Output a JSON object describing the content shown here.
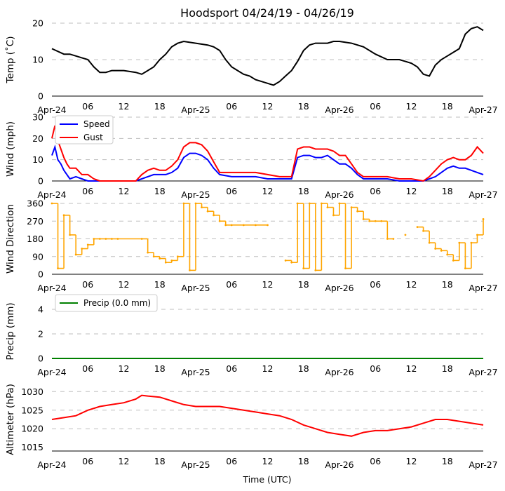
{
  "chart_data": [
    {
      "type": "line",
      "title": "Hoodsport 04/24/19 - 04/26/19",
      "ylabel": "Temp ($^\\circ$C)",
      "ylabel_display": "Temp (˚C)",
      "ylim": [
        0,
        20
      ],
      "yticks": [
        "0",
        "10",
        "20"
      ],
      "x_ticklabels": [
        "Apr-24",
        "06",
        "12",
        "18",
        "Apr-25",
        "06",
        "12",
        "18",
        "Apr-26",
        "06",
        "12",
        "18",
        "Apr-27"
      ],
      "color": "#000000",
      "series": [
        {
          "name": "Temp",
          "x": [
            0,
            2,
            3,
            4,
            5,
            6,
            7,
            8,
            9,
            10,
            12,
            14,
            15,
            16,
            17,
            18,
            19,
            20,
            21,
            22,
            24,
            26,
            27,
            28,
            29,
            30,
            31,
            32,
            33,
            34,
            35,
            36,
            37,
            38,
            39,
            40,
            41,
            42,
            43,
            44,
            45,
            46,
            47,
            48,
            50,
            52,
            54,
            56,
            57,
            58,
            59,
            60,
            61,
            62,
            63,
            64,
            65,
            66,
            67,
            68,
            69,
            70,
            71,
            72
          ],
          "values": [
            13,
            11.5,
            11.5,
            11,
            10.5,
            10,
            8,
            6.5,
            6.5,
            7,
            7,
            6.5,
            6,
            7,
            8,
            10,
            11.5,
            13.5,
            14.5,
            15,
            14.5,
            14,
            13.5,
            12.5,
            10,
            8,
            7,
            6,
            5.5,
            4.5,
            4,
            3.5,
            3,
            4,
            5.5,
            7,
            9.5,
            12.5,
            14,
            14.5,
            14.5,
            14.5,
            15,
            15,
            14.5,
            13.5,
            11.5,
            10,
            10,
            10,
            9.5,
            9,
            8,
            6,
            5.5,
            8.5,
            10,
            11,
            12,
            13,
            17,
            18.5,
            19,
            18
          ]
        }
      ]
    },
    {
      "type": "line",
      "ylabel": "Wind (mph)",
      "ylim": [
        0,
        30
      ],
      "yticks": [
        "0",
        "10",
        "20",
        "30"
      ],
      "x_ticklabels": [
        "Apr-24",
        "06",
        "12",
        "18",
        "Apr-25",
        "06",
        "12",
        "18",
        "Apr-26",
        "06",
        "12",
        "18",
        "Apr-27"
      ],
      "legend": [
        "Speed",
        "Gust"
      ],
      "series": [
        {
          "name": "Speed",
          "color": "#0000ff",
          "x": [
            0,
            0.5,
            1,
            1.5,
            2,
            2.5,
            3,
            4,
            5,
            6,
            7,
            8,
            9,
            10,
            12,
            14,
            15,
            16,
            17,
            18,
            19,
            20,
            21,
            22,
            23,
            24,
            25,
            26,
            27,
            28,
            30,
            32,
            34,
            36,
            38,
            40,
            41,
            42,
            43,
            44,
            45,
            46,
            47,
            48,
            49,
            50,
            51,
            52,
            53,
            54,
            56,
            58,
            60,
            62,
            63,
            64,
            65,
            66,
            67,
            68,
            69,
            70,
            71,
            72
          ],
          "values": [
            12,
            16,
            10,
            8,
            5,
            3,
            1,
            2,
            1,
            0,
            0,
            0,
            0,
            0,
            0,
            0,
            1,
            2,
            3,
            3,
            3,
            4,
            6,
            11,
            13,
            13,
            12,
            10,
            6,
            3,
            2,
            2,
            2,
            1,
            1,
            1,
            11,
            12,
            12,
            11,
            11,
            12,
            10,
            8,
            8,
            6,
            3,
            1,
            1,
            1,
            1,
            0,
            0,
            0,
            1,
            2,
            4,
            6,
            7,
            6,
            6,
            5,
            4,
            3
          ]
        },
        {
          "name": "Gust",
          "color": "#ff0000",
          "x": [
            0,
            0.5,
            1,
            1.5,
            2,
            2.5,
            3,
            4,
            5,
            6,
            7,
            8,
            9,
            10,
            12,
            14,
            15,
            16,
            17,
            18,
            19,
            20,
            21,
            22,
            23,
            24,
            25,
            26,
            27,
            28,
            30,
            32,
            34,
            36,
            38,
            40,
            41,
            42,
            43,
            44,
            45,
            46,
            47,
            48,
            49,
            50,
            51,
            52,
            53,
            54,
            56,
            58,
            60,
            62,
            63,
            64,
            65,
            66,
            67,
            68,
            69,
            70,
            71,
            72
          ],
          "values": [
            20,
            26,
            19,
            15,
            11,
            8,
            6,
            6,
            3,
            3,
            1,
            0,
            0,
            0,
            0,
            0,
            3,
            5,
            6,
            5,
            5,
            7,
            10,
            16,
            18,
            18,
            17,
            14,
            9,
            4,
            4,
            4,
            4,
            3,
            2,
            2,
            15,
            16,
            16,
            15,
            15,
            15,
            14,
            12,
            12,
            8,
            4,
            2,
            2,
            2,
            2,
            1,
            1,
            0,
            2,
            5,
            8,
            10,
            11,
            10,
            10,
            12,
            16,
            13
          ]
        }
      ]
    },
    {
      "type": "scatter",
      "ylabel": "Wind Direction",
      "ylim": [
        0,
        360
      ],
      "yticks": [
        "0",
        "90",
        "180",
        "270",
        "360"
      ],
      "x_ticklabels": [
        "Apr-24",
        "06",
        "12",
        "18",
        "Apr-25",
        "06",
        "12",
        "18",
        "Apr-26",
        "06",
        "12",
        "18",
        "Apr-27"
      ],
      "color": "#ffa500",
      "series": [
        {
          "name": "Direction",
          "x": [
            0,
            1,
            2,
            3,
            4,
            5,
            6,
            7,
            8,
            9,
            10,
            11,
            15,
            16,
            17,
            18,
            19,
            20,
            21,
            22,
            23,
            24,
            25,
            26,
            27,
            28,
            29,
            30,
            32,
            34,
            36,
            38,
            39,
            40,
            41,
            42,
            43,
            44,
            45,
            46,
            47,
            48,
            49,
            50,
            51,
            52,
            53,
            54,
            55,
            56,
            57,
            58,
            59,
            60,
            61,
            62,
            63,
            64,
            65,
            66,
            67,
            68,
            69,
            70,
            71,
            72
          ],
          "values": [
            360,
            30,
            300,
            200,
            100,
            130,
            150,
            180,
            180,
            180,
            180,
            180,
            180,
            110,
            90,
            80,
            60,
            70,
            90,
            360,
            20,
            360,
            340,
            320,
            300,
            270,
            250,
            250,
            250,
            250,
            250,
            null,
            70,
            60,
            360,
            30,
            360,
            20,
            360,
            340,
            300,
            360,
            30,
            340,
            320,
            280,
            270,
            270,
            270,
            180,
            180,
            null,
            200,
            null,
            240,
            220,
            160,
            130,
            120,
            100,
            70,
            160,
            30,
            160,
            200,
            280
          ]
        }
      ]
    },
    {
      "type": "line",
      "ylabel": "Precip (mm)",
      "ylim": [
        0,
        4.4
      ],
      "yticks": [
        "0",
        "2",
        "4"
      ],
      "x_ticklabels": [
        "Apr-24",
        "06",
        "12",
        "18",
        "Apr-25",
        "06",
        "12",
        "18",
        "Apr-26",
        "06",
        "12",
        "18",
        "Apr-27"
      ],
      "legend": [
        "Precip (0.0 mm)"
      ],
      "color": "#008000",
      "series": [
        {
          "name": "Precip (0.0 mm)",
          "x": [
            0,
            72
          ],
          "values": [
            0,
            0
          ]
        }
      ]
    },
    {
      "type": "line",
      "ylabel": "Altimeter (hPa)",
      "xlabel": "Time (UTC)",
      "ylim": [
        1014,
        1031
      ],
      "yticks": [
        "1015",
        "1020",
        "1025",
        "1030"
      ],
      "x_ticklabels": [
        "Apr-24",
        "06",
        "12",
        "18",
        "Apr-25",
        "06",
        "12",
        "18",
        "Apr-26",
        "06",
        "12",
        "18",
        "Apr-27"
      ],
      "color": "#ff0000",
      "series": [
        {
          "name": "Altimeter",
          "x": [
            0,
            2,
            4,
            6,
            8,
            10,
            12,
            14,
            15,
            16,
            18,
            20,
            22,
            24,
            26,
            28,
            30,
            32,
            34,
            36,
            38,
            40,
            42,
            44,
            46,
            48,
            50,
            52,
            54,
            56,
            58,
            60,
            62,
            64,
            66,
            68,
            70,
            72
          ],
          "values": [
            1022.5,
            1023,
            1023.5,
            1025,
            1026,
            1026.5,
            1027,
            1028,
            1029,
            1028.8,
            1028.5,
            1027.5,
            1026.5,
            1026,
            1026,
            1026,
            1025.5,
            1025,
            1024.5,
            1024,
            1023.5,
            1022.5,
            1021,
            1020,
            1019,
            1018.5,
            1018,
            1019,
            1019.5,
            1019.5,
            1020,
            1020.5,
            1021.5,
            1022.5,
            1022.5,
            1022,
            1021.5,
            1021
          ]
        }
      ]
    }
  ]
}
